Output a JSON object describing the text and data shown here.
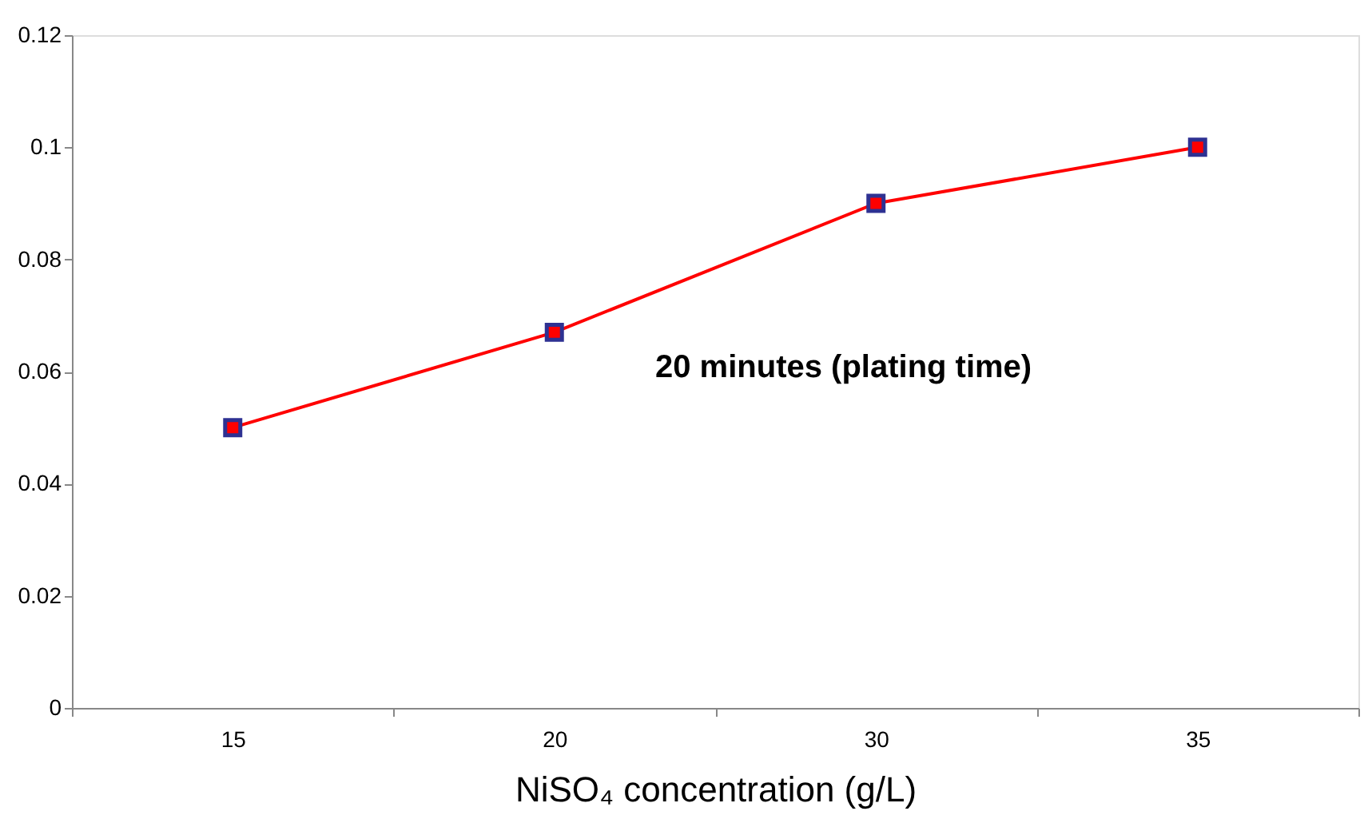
{
  "chart_data": {
    "type": "line",
    "xlabel": "NiSO₄ concentration (g/L)",
    "categories": [
      "15",
      "20",
      "30",
      "35"
    ],
    "series": [
      {
        "color": "#ff0000",
        "values": [
          0.05,
          0.067,
          0.09,
          0.1
        ]
      }
    ],
    "ylim": [
      0,
      0.12
    ],
    "yticks": [
      0,
      0.02,
      0.04,
      0.06,
      0.08,
      0.1,
      0.12
    ],
    "annotations": [
      "20 minutes (plating time)"
    ],
    "grid": false,
    "legend": false,
    "marker": "square",
    "line_style": "solid"
  }
}
